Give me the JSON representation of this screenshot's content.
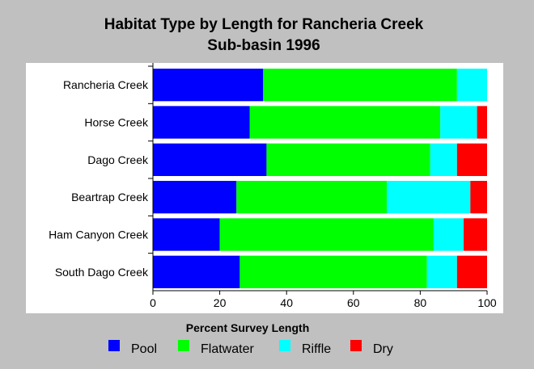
{
  "chart_data": {
    "type": "bar",
    "orientation": "horizontal",
    "stacked": true,
    "title_lines": [
      "Habitat Type by Length for Rancheria Creek",
      "Sub-basin 1996"
    ],
    "xlabel": "Percent Survey Length",
    "ylabel": "",
    "xlim": [
      0,
      100
    ],
    "xticks": [
      0,
      20,
      40,
      60,
      80,
      100
    ],
    "categories": [
      "Rancheria Creek",
      "Horse Creek",
      "Dago Creek",
      "Beartrap Creek",
      "Ham Canyon Creek",
      "South Dago Creek"
    ],
    "series": [
      {
        "name": "Pool",
        "color": "#0000ff",
        "values": [
          33,
          29,
          34,
          25,
          20,
          26
        ]
      },
      {
        "name": "Flatwater",
        "color": "#00ff00",
        "values": [
          58,
          57,
          49,
          45,
          64,
          56
        ]
      },
      {
        "name": "Riffle",
        "color": "#00ffff",
        "values": [
          9,
          11,
          8,
          25,
          9,
          9
        ]
      },
      {
        "name": "Dry",
        "color": "#ff0000",
        "values": [
          0,
          3,
          9,
          5,
          7,
          9
        ]
      }
    ],
    "legend_position": "bottom",
    "grid": false
  },
  "colors": {
    "background": "#c0c0c0",
    "plot_area": "#ffffff"
  }
}
